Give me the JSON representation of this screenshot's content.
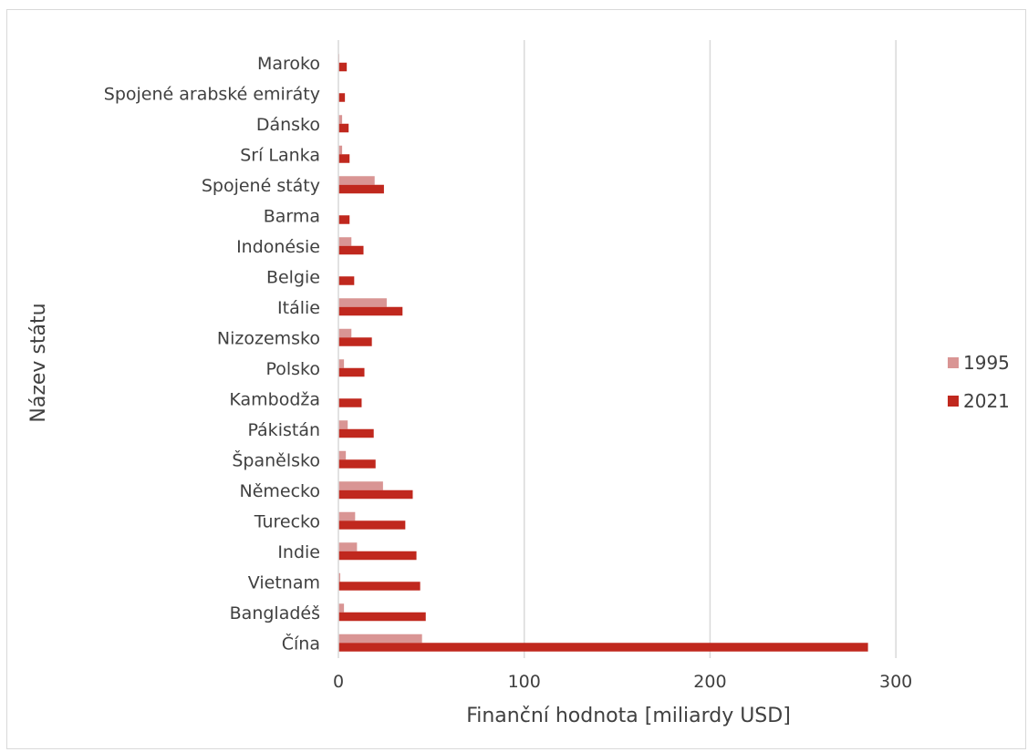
{
  "chart_data": {
    "type": "bar",
    "orientation": "horizontal",
    "categories": [
      "Maroko",
      "Spojené arabské emiráty",
      "Dánsko",
      "Srí Lanka",
      "Spojené státy",
      "Barma",
      "Indonésie",
      "Belgie",
      "Itálie",
      "Nizozemsko",
      "Polsko",
      "Kambodža",
      "Pákistán",
      "Španělsko",
      "Německo",
      "Turecko",
      "Indie",
      "Vietnam",
      "Bangladéš",
      "Čína"
    ],
    "series": [
      {
        "name": "1995",
        "color": "#d99594",
        "values": [
          0.5,
          0,
          2,
          2,
          19.5,
          0,
          7,
          0,
          26,
          7,
          3,
          0,
          5,
          4,
          24,
          9,
          10,
          1,
          3,
          45
        ]
      },
      {
        "name": "2021",
        "color": "#c0281e",
        "values": [
          4.5,
          3.5,
          5.5,
          6,
          24.5,
          6,
          13.5,
          8.5,
          34.5,
          18,
          14,
          12.5,
          19,
          20,
          40,
          36,
          42,
          44,
          47,
          285
        ]
      }
    ],
    "xlabel": "Finanční hodnota [miliardy USD]",
    "ylabel": "Název státu",
    "xlim": [
      0,
      350
    ],
    "xticks": [
      0,
      100,
      200,
      300
    ],
    "grid": true,
    "legend_position": "right"
  }
}
